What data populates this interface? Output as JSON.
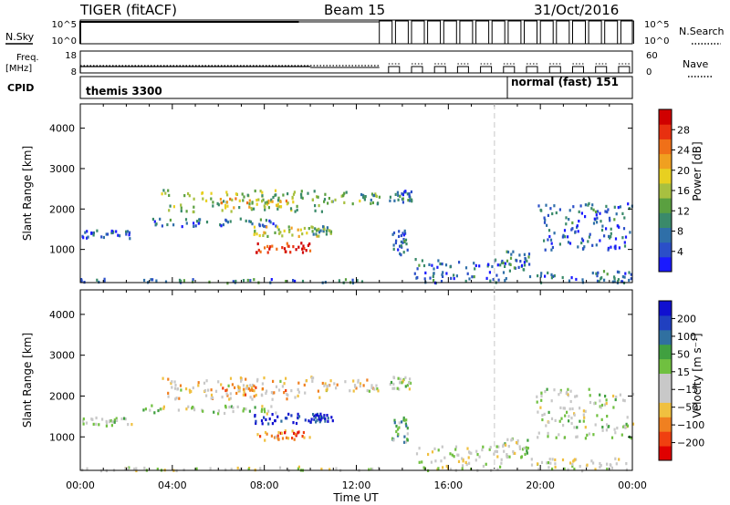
{
  "header": {
    "title": "TIGER (fitACF)",
    "beam": "Beam 15",
    "date": "31/Oct/2016"
  },
  "summary_panels": {
    "nsky_label": "N.Sky",
    "nsearch_label": "N.Search",
    "freq_label_line1": "Freq.",
    "freq_label_line2": "[MHz]",
    "nave_label": "Nave",
    "cpid_label": "CPID",
    "noise_ticks_left": [
      "10^5",
      "10^0"
    ],
    "noise_ticks_right": [
      "10^5",
      "10^0"
    ],
    "freq_ticks": [
      "18",
      "8"
    ],
    "nave_ticks": [
      "60",
      "0"
    ],
    "cpid_modes": [
      {
        "label": "themis 3300",
        "start_hour": 0,
        "end_hour": 18.6
      },
      {
        "label": "normal (fast) 151",
        "start_hour": 18.6,
        "end_hour": 24
      }
    ]
  },
  "chart_data": [
    {
      "type": "heatmap",
      "id": "power",
      "ylabel": "Slant Range [km]",
      "xlabel": "",
      "ylim": [
        180,
        4600
      ],
      "xlim": [
        0,
        24
      ],
      "yticks": [
        "1000",
        "2000",
        "3000",
        "4000"
      ],
      "colorbar": {
        "label": "Power [dB]",
        "ticks": [
          "4",
          "8",
          "12",
          "16",
          "20",
          "24",
          "28"
        ],
        "range": [
          0,
          30
        ],
        "colors": [
          "#1a1aff",
          "#2b4fc8",
          "#2f6fa8",
          "#3a8a6a",
          "#5aa040",
          "#a8c040",
          "#e8d020",
          "#f0a020",
          "#f07018",
          "#e83010",
          "#d00000"
        ]
      },
      "echo_regions": [
        {
          "hours": [
            0.0,
            13.0
          ],
          "ranges": [
            200,
            300
          ],
          "level": 0.25
        },
        {
          "hours": [
            0.0,
            2.2
          ],
          "ranges": [
            1300,
            1500
          ],
          "level": 0.15
        },
        {
          "hours": [
            2.5,
            8.5
          ],
          "ranges": [
            1600,
            1800
          ],
          "level": 0.2
        },
        {
          "hours": [
            3.5,
            10.5
          ],
          "ranges": [
            1950,
            2500
          ],
          "level": 0.45
        },
        {
          "hours": [
            6.0,
            9.0
          ],
          "ranges": [
            2050,
            2300
          ],
          "level": 0.6
        },
        {
          "hours": [
            7.5,
            10.5
          ],
          "ranges": [
            1350,
            1600
          ],
          "level": 0.55
        },
        {
          "hours": [
            7.6,
            10.0
          ],
          "ranges": [
            950,
            1200
          ],
          "level": 0.9
        },
        {
          "hours": [
            10.5,
            13.0
          ],
          "ranges": [
            2150,
            2450
          ],
          "level": 0.4
        },
        {
          "hours": [
            10.0,
            11.0
          ],
          "ranges": [
            1400,
            1600
          ],
          "level": 0.35
        },
        {
          "hours": [
            13.5,
            14.2
          ],
          "ranges": [
            900,
            1500
          ],
          "level": 0.2
        },
        {
          "hours": [
            13.4,
            14.4
          ],
          "ranges": [
            2200,
            2500
          ],
          "level": 0.25
        },
        {
          "hours": [
            14.5,
            18.5
          ],
          "ranges": [
            200,
            800
          ],
          "level": 0.2
        },
        {
          "hours": [
            18.3,
            19.5
          ],
          "ranges": [
            500,
            1000
          ],
          "level": 0.25
        },
        {
          "hours": [
            19.5,
            24.0
          ],
          "ranges": [
            200,
            500
          ],
          "level": 0.2
        },
        {
          "hours": [
            19.8,
            24.0
          ],
          "ranges": [
            1000,
            2200
          ],
          "level": 0.2
        }
      ]
    },
    {
      "type": "heatmap",
      "id": "velocity",
      "ylabel": "Slant Range [km]",
      "xlabel": "Time UT",
      "ylim": [
        180,
        4600
      ],
      "xlim": [
        0,
        24
      ],
      "xticks": [
        "00:00",
        "04:00",
        "08:00",
        "12:00",
        "16:00",
        "20:00",
        "00:00"
      ],
      "yticks": [
        "1000",
        "2000",
        "3000",
        "4000"
      ],
      "colorbar": {
        "label": "Velocity [m s⁻¹]",
        "ticks": [
          "200",
          "100",
          "50",
          "15",
          "−15",
          "−50",
          "−100",
          "−200"
        ],
        "range": [
          -250,
          250
        ],
        "colors": [
          "#e00000",
          "#f04010",
          "#f08020",
          "#f0c040",
          "#c8c8c8",
          "#c8c8c8",
          "#70c040",
          "#40a040",
          "#3070a0",
          "#2040c0",
          "#1010d0"
        ]
      },
      "echo_regions": [
        {
          "hours": [
            0.0,
            13.0
          ],
          "ranges": [
            200,
            300
          ],
          "level": 0.45
        },
        {
          "hours": [
            0.0,
            2.2
          ],
          "ranges": [
            1300,
            1500
          ],
          "level": 0.5
        },
        {
          "hours": [
            2.5,
            8.5
          ],
          "ranges": [
            1600,
            1800
          ],
          "level": 0.5
        },
        {
          "hours": [
            3.5,
            10.5
          ],
          "ranges": [
            1950,
            2500
          ],
          "level": 0.38
        },
        {
          "hours": [
            6.0,
            9.0
          ],
          "ranges": [
            2050,
            2300
          ],
          "level": 0.3
        },
        {
          "hours": [
            7.5,
            10.5
          ],
          "ranges": [
            1350,
            1600
          ],
          "level": 0.95
        },
        {
          "hours": [
            7.6,
            10.0
          ],
          "ranges": [
            950,
            1200
          ],
          "level": 0.2
        },
        {
          "hours": [
            10.5,
            13.0
          ],
          "ranges": [
            2150,
            2450
          ],
          "level": 0.4
        },
        {
          "hours": [
            10.0,
            11.0
          ],
          "ranges": [
            1400,
            1600
          ],
          "level": 0.9
        },
        {
          "hours": [
            13.5,
            14.2
          ],
          "ranges": [
            900,
            1500
          ],
          "level": 0.65
        },
        {
          "hours": [
            13.4,
            14.4
          ],
          "ranges": [
            2200,
            2500
          ],
          "level": 0.5
        },
        {
          "hours": [
            14.5,
            18.5
          ],
          "ranges": [
            200,
            800
          ],
          "level": 0.45
        },
        {
          "hours": [
            18.3,
            19.5
          ],
          "ranges": [
            500,
            1000
          ],
          "level": 0.5
        },
        {
          "hours": [
            19.5,
            24.0
          ],
          "ranges": [
            200,
            500
          ],
          "level": 0.45
        },
        {
          "hours": [
            19.8,
            24.0
          ],
          "ranges": [
            1000,
            2200
          ],
          "level": 0.5
        }
      ]
    }
  ]
}
